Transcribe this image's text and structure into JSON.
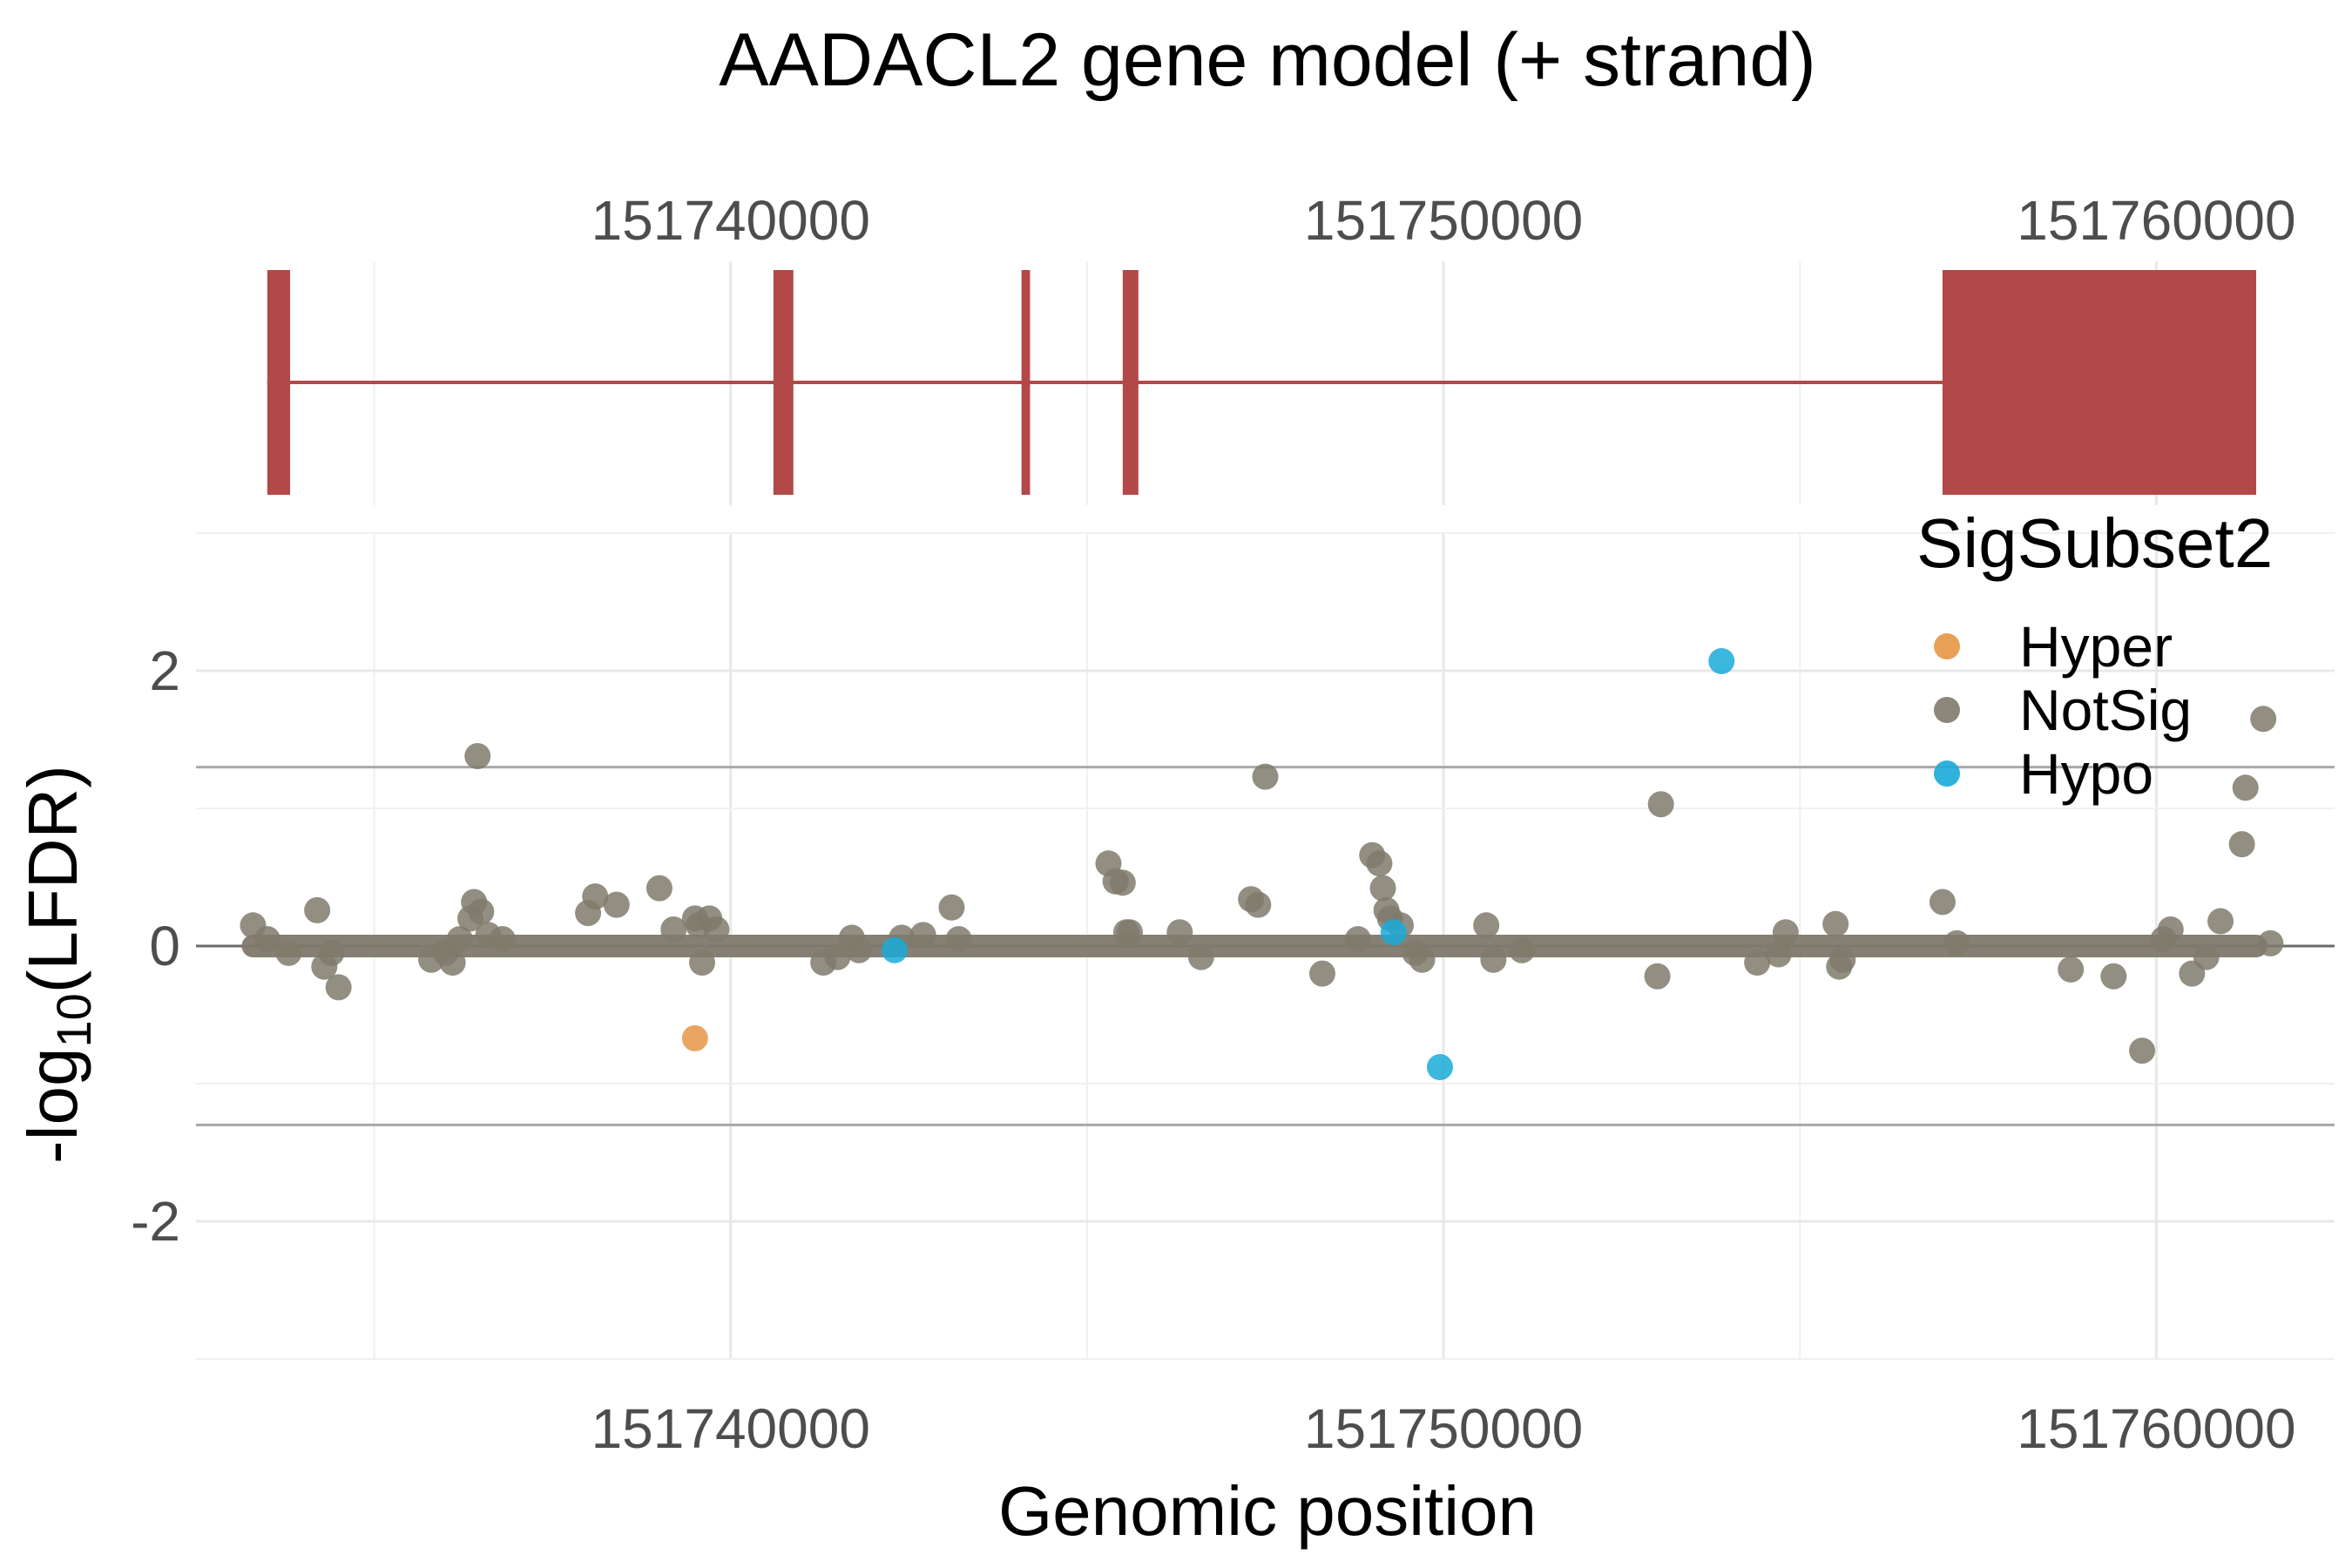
{
  "chart_data": [
    {
      "type": "gene-model",
      "title": "AADACL2 gene model (+ strand)",
      "xlim": [
        151732500,
        151762500
      ],
      "x_ticks": [
        151740000,
        151750000,
        151760000
      ],
      "x_tick_labels": [
        "151740000",
        "151750000",
        "151760000"
      ],
      "exons": [
        {
          "start": 151733500,
          "end": 151733820
        },
        {
          "start": 151740600,
          "end": 151740880
        },
        {
          "start": 151744080,
          "end": 151744200
        },
        {
          "start": 151745500,
          "end": 151745720
        },
        {
          "start": 151757000,
          "end": 151761400
        }
      ],
      "intron_span": [
        151733500,
        151761400
      ],
      "colors": {
        "exon": "#b34848"
      }
    },
    {
      "type": "scatter",
      "xlabel": "Genomic position",
      "ylabel": "-log10(LFDR)",
      "ylabel_parts": {
        "before": "-log",
        "sub": "10",
        "after": "(LFDR)"
      },
      "xlim": [
        151732500,
        151762500
      ],
      "ylim": [
        -3.0,
        3.0
      ],
      "x_ticks": [
        151740000,
        151750000,
        151760000
      ],
      "x_tick_labels": [
        "151740000",
        "151750000",
        "151760000"
      ],
      "y_ticks": [
        -2,
        0,
        2
      ],
      "y_tick_labels": [
        "-2",
        "0",
        "2"
      ],
      "hlines": [
        1.3,
        -1.3
      ],
      "baseline_y": 0,
      "baseline_span": [
        151733300,
        151761400
      ],
      "grid": true,
      "legend": {
        "title": "SigSubset2",
        "position": "top-right",
        "entries": [
          {
            "name": "Hyper",
            "color": "#e69645"
          },
          {
            "name": "NotSig",
            "color": "#7f7a6c"
          },
          {
            "name": "Hypo",
            "color": "#1aaad8"
          }
        ]
      },
      "series": [
        {
          "name": "NotSig",
          "color": "#7f7a6c",
          "points": [
            [
              151733300,
              0.15
            ],
            [
              151733500,
              0.05
            ],
            [
              151733800,
              -0.05
            ],
            [
              151734200,
              0.26
            ],
            [
              151734300,
              -0.15
            ],
            [
              151734400,
              -0.05
            ],
            [
              151734500,
              -0.3
            ],
            [
              151735800,
              -0.1
            ],
            [
              151736000,
              -0.05
            ],
            [
              151736100,
              -0.12
            ],
            [
              151736200,
              0.05
            ],
            [
              151736350,
              0.2
            ],
            [
              151736400,
              0.32
            ],
            [
              151736450,
              1.38
            ],
            [
              151736500,
              0.25
            ],
            [
              151736600,
              0.08
            ],
            [
              151736800,
              0.05
            ],
            [
              151738000,
              0.24
            ],
            [
              151738100,
              0.36
            ],
            [
              151738400,
              0.3
            ],
            [
              151739000,
              0.42
            ],
            [
              151739200,
              0.12
            ],
            [
              151739500,
              0.2
            ],
            [
              151739550,
              0.15
            ],
            [
              151739600,
              -0.12
            ],
            [
              151739700,
              0.2
            ],
            [
              151739800,
              0.12
            ],
            [
              151741300,
              -0.12
            ],
            [
              151741500,
              -0.08
            ],
            [
              151741700,
              0.06
            ],
            [
              151741800,
              -0.03
            ],
            [
              151742400,
              0.06
            ],
            [
              151742700,
              0.08
            ],
            [
              151743100,
              0.28
            ],
            [
              151743200,
              0.05
            ],
            [
              151745300,
              0.6
            ],
            [
              151745400,
              0.47
            ],
            [
              151745500,
              0.46
            ],
            [
              151745550,
              0.1
            ],
            [
              151745600,
              0.1
            ],
            [
              151746300,
              0.1
            ],
            [
              151746600,
              -0.08
            ],
            [
              151747300,
              0.34
            ],
            [
              151747400,
              0.3
            ],
            [
              151747500,
              1.23
            ],
            [
              151748300,
              -0.2
            ],
            [
              151748800,
              0.05
            ],
            [
              151749000,
              0.66
            ],
            [
              151749100,
              0.6
            ],
            [
              151749150,
              0.42
            ],
            [
              151749200,
              0.26
            ],
            [
              151749250,
              0.2
            ],
            [
              151749400,
              0.15
            ],
            [
              151749600,
              -0.05
            ],
            [
              151749700,
              -0.1
            ],
            [
              151750600,
              0.15
            ],
            [
              151750700,
              -0.1
            ],
            [
              151751100,
              -0.03
            ],
            [
              151753000,
              -0.22
            ],
            [
              151753050,
              1.03
            ],
            [
              151754400,
              -0.12
            ],
            [
              151754700,
              -0.06
            ],
            [
              151754800,
              0.1
            ],
            [
              151755500,
              0.16
            ],
            [
              151755550,
              -0.15
            ],
            [
              151755600,
              -0.1
            ],
            [
              151757000,
              0.32
            ],
            [
              151757200,
              0.02
            ],
            [
              151758800,
              -0.17
            ],
            [
              151759400,
              -0.22
            ],
            [
              151759800,
              -0.76
            ],
            [
              151760100,
              0.05
            ],
            [
              151760200,
              0.12
            ],
            [
              151760500,
              -0.2
            ],
            [
              151760700,
              -0.08
            ],
            [
              151760900,
              0.18
            ],
            [
              151761200,
              0.74
            ],
            [
              151761250,
              1.15
            ],
            [
              151761500,
              1.65
            ],
            [
              151761600,
              0.02
            ]
          ]
        },
        {
          "name": "Hyper",
          "color": "#e69645",
          "points": [
            [
              151739500,
              -0.67
            ]
          ]
        },
        {
          "name": "Hypo",
          "color": "#1aaad8",
          "points": [
            [
              151742300,
              -0.03
            ],
            [
              151749300,
              0.1
            ],
            [
              151749950,
              -0.88
            ],
            [
              151753900,
              2.07
            ]
          ]
        }
      ]
    }
  ]
}
